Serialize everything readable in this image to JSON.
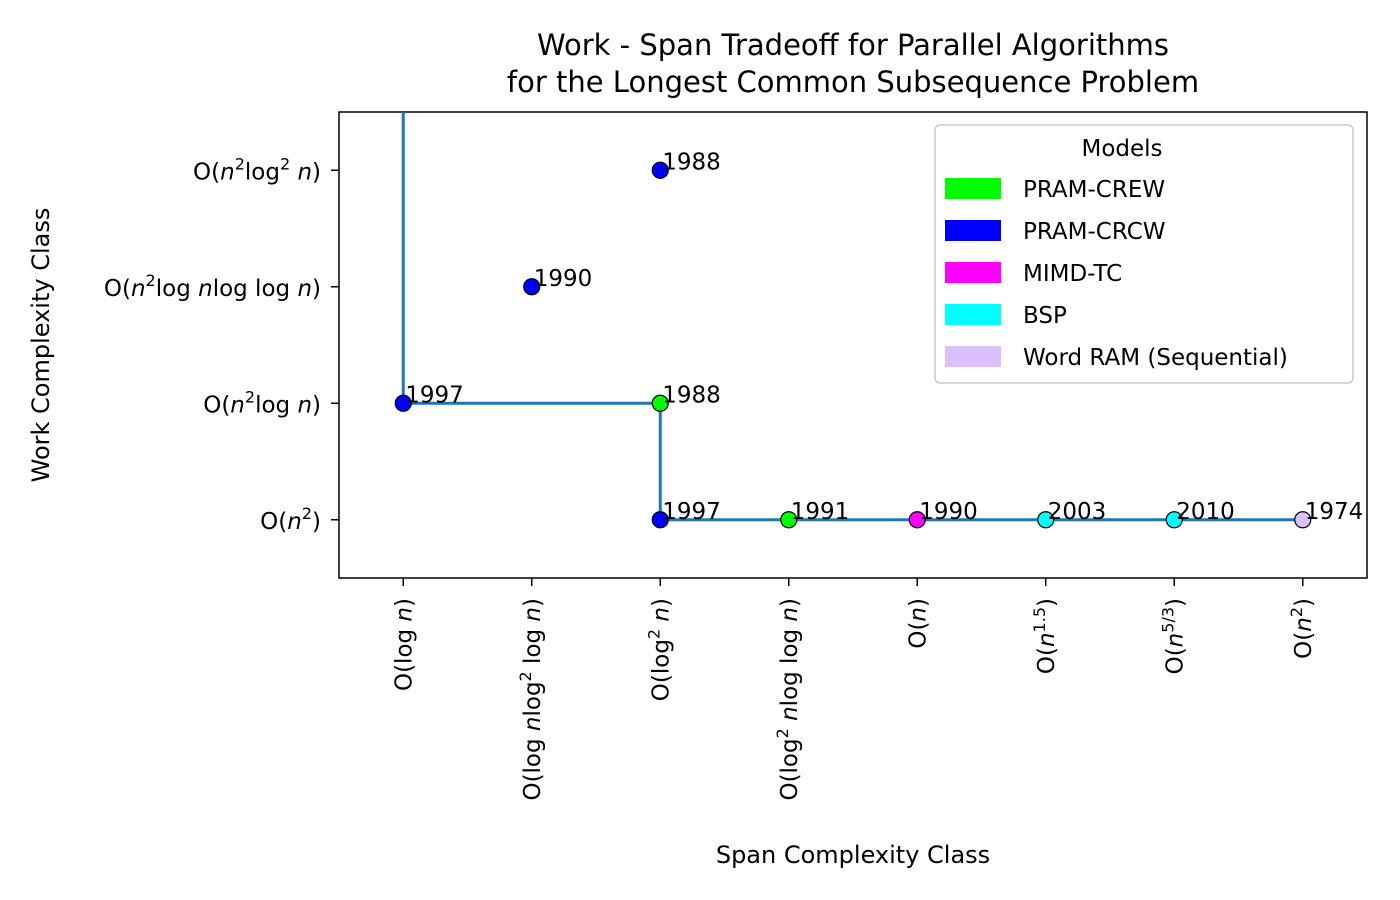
{
  "chart_data": {
    "type": "scatter",
    "title_lines": [
      "Work - Span Tradeoff for Parallel Algorithms",
      "for the Longest Common Subsequence Problem"
    ],
    "xlabel": "Span Complexity Class",
    "ylabel": "Work Complexity Class",
    "x_categories": [
      {
        "pre": "O(log ",
        "it": "n",
        "sup": "",
        "post": ")",
        "tex": "O(log n)"
      },
      {
        "pre": "O(log ",
        "it": "n",
        "mid": "log",
        "sup": "2",
        "post2": " log ",
        "it2": "n",
        "post": ")",
        "tex": "O(log n log^2 log n)"
      },
      {
        "pre": "O(log",
        "sup": "2",
        "post2": " ",
        "it2": "n",
        "post": ")",
        "tex": "O(log^2 n)"
      },
      {
        "pre": "O(log",
        "sup": "2",
        "post2": " ",
        "it2": "n",
        "mid2": "log log ",
        "it3": "n",
        "post": ")",
        "tex": "O(log^2 n log log n)"
      },
      {
        "pre": "O(",
        "it": "n",
        "post": ")",
        "tex": "O(n)"
      },
      {
        "pre": "O(",
        "it": "n",
        "sup": "1.5",
        "post": ")",
        "tex": "O(n^1.5)"
      },
      {
        "pre": "O(",
        "it": "n",
        "sup": "5/3",
        "post": ")",
        "tex": "O(n^5/3)"
      },
      {
        "pre": "O(",
        "it": "n",
        "sup": "2",
        "post": ")",
        "tex": "O(n^2)"
      }
    ],
    "y_categories": [
      "O(n^2)",
      "O(n^2 log n)",
      "O(n^2 log n log log n)",
      "O(n^2 log^2 n)"
    ],
    "models": [
      {
        "name": "PRAM-CREW",
        "color": "#00ff00"
      },
      {
        "name": "PRAM-CRCW",
        "color": "#0000ff"
      },
      {
        "name": "MIMD-TC",
        "color": "#ff00ff"
      },
      {
        "name": "BSP",
        "color": "#00ffff"
      },
      {
        "name": "Word RAM (Sequential)",
        "color": "#dbbfff"
      }
    ],
    "legend_title": "Models",
    "legend_position": "upper right",
    "points": [
      {
        "x": 0,
        "y": 1,
        "year": "1997",
        "model": "PRAM-CRCW"
      },
      {
        "x": 1,
        "y": 2,
        "year": "1990",
        "model": "PRAM-CRCW"
      },
      {
        "x": 2,
        "y": 3,
        "year": "1988",
        "model": "PRAM-CRCW"
      },
      {
        "x": 2,
        "y": 1,
        "year": "1988",
        "model": "PRAM-CREW"
      },
      {
        "x": 2,
        "y": 0,
        "year": "1997",
        "model": "PRAM-CRCW"
      },
      {
        "x": 3,
        "y": 0,
        "year": "1991",
        "model": "PRAM-CREW"
      },
      {
        "x": 4,
        "y": 0,
        "year": "1990",
        "model": "MIMD-TC"
      },
      {
        "x": 5,
        "y": 0,
        "year": "2003",
        "model": "BSP"
      },
      {
        "x": 6,
        "y": 0,
        "year": "2010",
        "model": "BSP"
      },
      {
        "x": 7,
        "y": 0,
        "year": "1974",
        "model": "Word RAM (Sequential)"
      }
    ],
    "pareto_frontier": [
      [
        0,
        3.5
      ],
      [
        0,
        1
      ],
      [
        2,
        1
      ],
      [
        2,
        0
      ],
      [
        7,
        0
      ]
    ],
    "frontier_color": "#1f77b4",
    "xlim": [
      -0.5,
      7.5
    ],
    "ylim": [
      -0.5,
      3.5
    ]
  }
}
